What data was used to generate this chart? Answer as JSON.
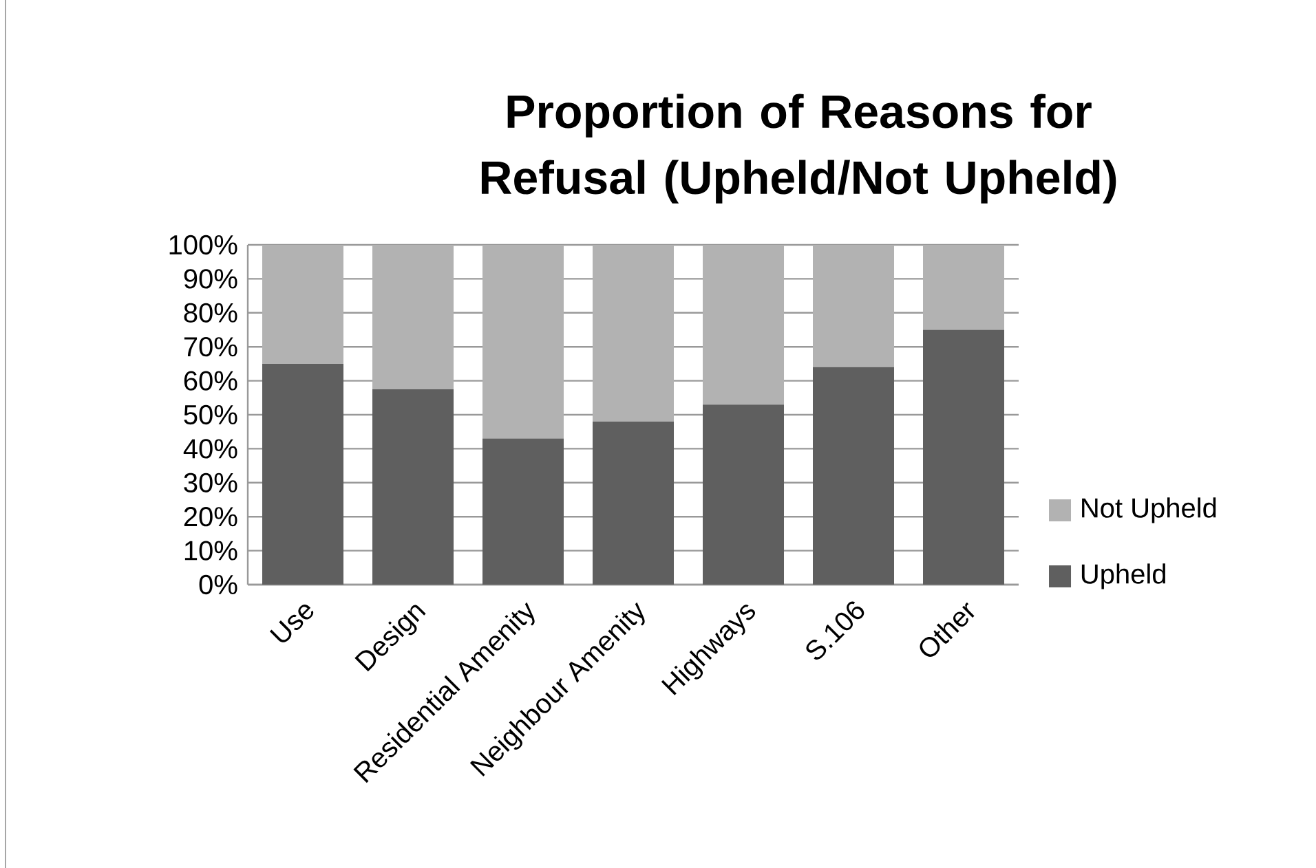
{
  "chart_data": {
    "type": "bar",
    "stacked": true,
    "title": "Proportion of Reasons for Refusal (Upheld/Not Upheld)",
    "categories": [
      "Use",
      "Design",
      "Residential Amenity",
      "Neighbour Amenity",
      "Highways",
      "S.106",
      "Other"
    ],
    "series": [
      {
        "name": "Upheld",
        "color": "#5f5f5f",
        "values": [
          65,
          57.5,
          43,
          48,
          53,
          64,
          75
        ]
      },
      {
        "name": "Not Upheld",
        "color": "#b2b2b2",
        "values": [
          35,
          42.5,
          57,
          52,
          47,
          36,
          25
        ]
      }
    ],
    "ylim": [
      0,
      100
    ],
    "yticks": [
      {
        "value": 0,
        "label": "0%"
      },
      {
        "value": 10,
        "label": "10%"
      },
      {
        "value": 20,
        "label": "20%"
      },
      {
        "value": 30,
        "label": "30%"
      },
      {
        "value": 40,
        "label": "40%"
      },
      {
        "value": 50,
        "label": "50%"
      },
      {
        "value": 60,
        "label": "60%"
      },
      {
        "value": 70,
        "label": "70%"
      },
      {
        "value": 80,
        "label": "80%"
      },
      {
        "value": 90,
        "label": "90%"
      },
      {
        "value": 100,
        "label": "100%"
      }
    ],
    "grid": "y",
    "legend": "right"
  }
}
